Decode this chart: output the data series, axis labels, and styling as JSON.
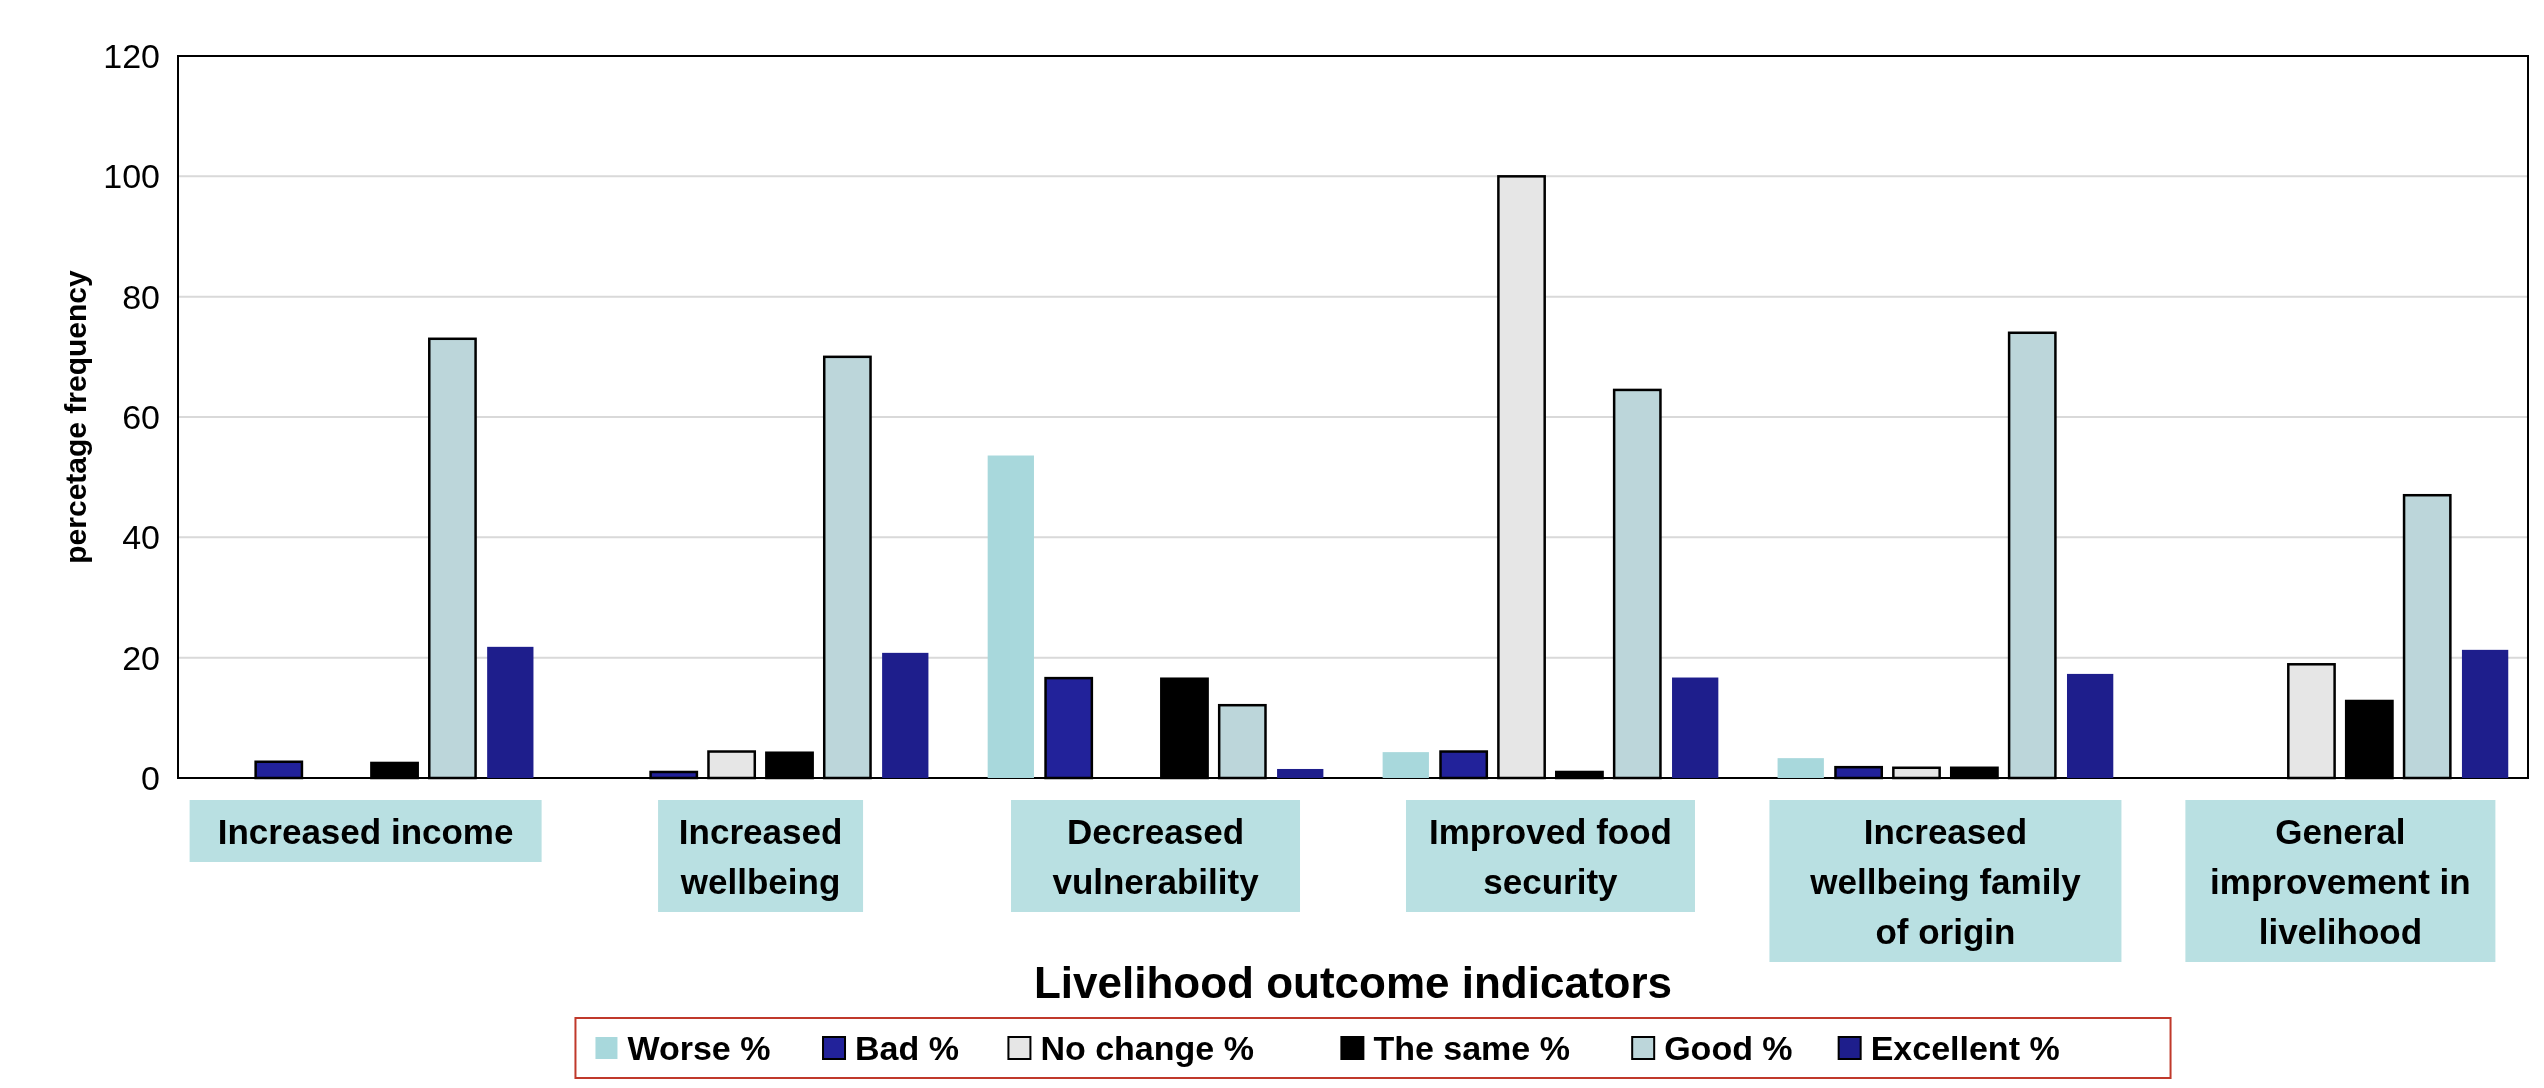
{
  "chart_data": {
    "type": "bar",
    "xlabel": "Livelihood outcome indicators",
    "ylabel": "percetage frequency",
    "categories": [
      "Increased income",
      "Increased wellbeing",
      "Decreased vulnerability",
      "Improved food security",
      "Increased wellbeing family of origin",
      "General improvement in livelihood"
    ],
    "series": [
      {
        "name": "Worse %",
        "color": "#a8d8dc",
        "values": [
          0,
          0,
          53.6,
          4.3,
          3.3,
          0
        ]
      },
      {
        "name": "Bad %",
        "color": "#22229a",
        "values": [
          2.7,
          1,
          16.6,
          4.4,
          1.8,
          0
        ]
      },
      {
        "name": "No change  %",
        "color": "#e6e6e6",
        "values": [
          0,
          4.4,
          0,
          100,
          1.7,
          18.9
        ]
      },
      {
        "name": "The same %",
        "color": "#000000",
        "values": [
          2.5,
          4.2,
          16.5,
          1,
          1.7,
          12.8
        ]
      },
      {
        "name": "Good %",
        "color": "#bcd6da",
        "values": [
          73,
          70,
          12.1,
          64.5,
          74,
          47
        ]
      },
      {
        "name": "Excellent %",
        "color": "#1e1e8c",
        "values": [
          21.8,
          20.8,
          1.5,
          16.7,
          17.3,
          21.3
        ]
      }
    ],
    "ylim": [
      0,
      120
    ],
    "yticks": [
      0,
      20,
      40,
      60,
      80,
      100,
      120
    ],
    "grid": "y",
    "legend": "bottom"
  }
}
